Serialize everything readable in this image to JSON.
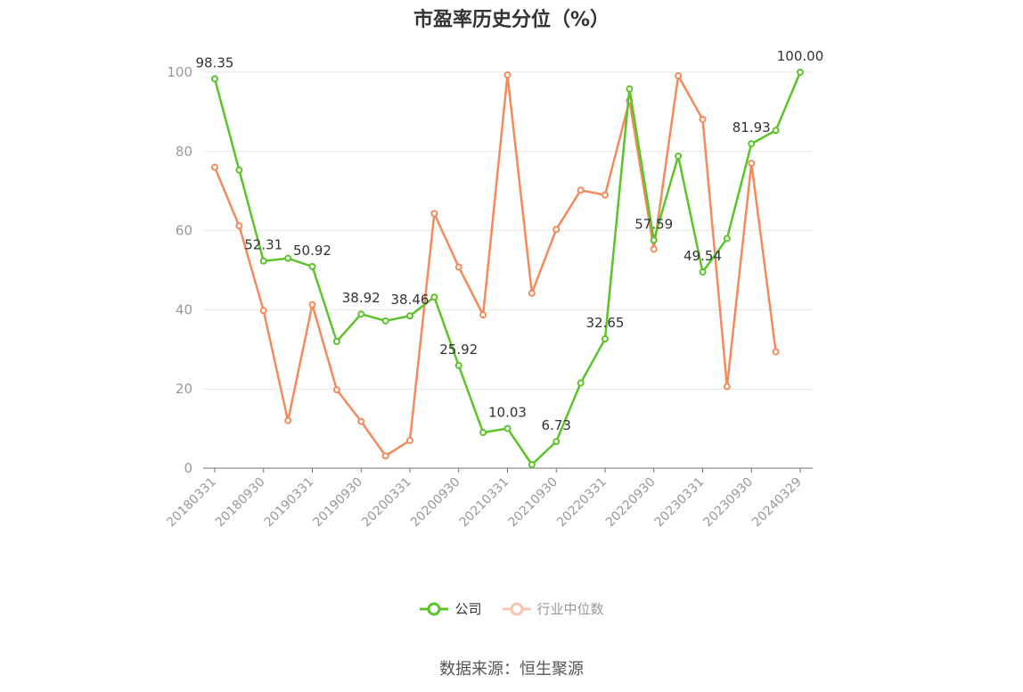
{
  "chart_data": {
    "type": "line",
    "title": "市盈率历史分位（%）",
    "ylim": [
      0,
      100
    ],
    "y_ticks": [
      0,
      20,
      40,
      60,
      80,
      100
    ],
    "x": [
      "20180331",
      "20180630",
      "20180930",
      "20181231",
      "20190331",
      "20190630",
      "20190930",
      "20191231",
      "20200331",
      "20200630",
      "20200930",
      "20201231",
      "20210331",
      "20210630",
      "20210930",
      "20211231",
      "20220331",
      "20220630",
      "20220930",
      "20221231",
      "20230331",
      "20230630",
      "20230930",
      "20231231",
      "20240329"
    ],
    "x_tick_labels": [
      "20180331",
      "20180930",
      "20190331",
      "20190930",
      "20200331",
      "20200930",
      "20210331",
      "20210930",
      "20220331",
      "20220930",
      "20230331",
      "20230930",
      "20240329"
    ],
    "grid": true,
    "legend_position": "bottom",
    "series": [
      {
        "name": "公司",
        "color": "#5cc32b",
        "values": [
          98.35,
          75.3,
          52.31,
          53.0,
          50.92,
          32.0,
          38.92,
          37.2,
          38.46,
          43.2,
          25.92,
          9.0,
          10.03,
          0.9,
          6.73,
          21.5,
          32.65,
          95.8,
          57.59,
          78.8,
          49.54,
          58.0,
          81.93,
          85.3,
          100.0
        ],
        "labels": [
          "98.35",
          null,
          "52.31",
          null,
          "50.92",
          null,
          "38.92",
          null,
          "38.46",
          null,
          "25.92",
          null,
          "10.03",
          null,
          "6.73",
          null,
          "32.65",
          null,
          "57.59",
          null,
          "49.54",
          null,
          "81.93",
          null,
          "100.00"
        ]
      },
      {
        "name": "行业中位数",
        "color": "#f48a5c",
        "values": [
          76.0,
          61.2,
          39.8,
          12.0,
          41.3,
          19.8,
          11.8,
          3.1,
          7.0,
          64.3,
          50.8,
          38.7,
          99.3,
          44.2,
          60.3,
          70.2,
          69.0,
          92.8,
          55.3,
          99.1,
          88.1,
          20.6,
          77.0,
          29.4,
          null
        ],
        "labels": []
      }
    ]
  },
  "legend": {
    "items": [
      {
        "label": "公司",
        "color": "#5cc32b",
        "text_color": "#333333",
        "icon_color": "#5cc32b"
      },
      {
        "label": "行业中位数",
        "color": "#f48a5c",
        "text_color": "#999999",
        "icon_color": "#f9c4ae"
      }
    ]
  },
  "source": "数据来源：恒生聚源"
}
